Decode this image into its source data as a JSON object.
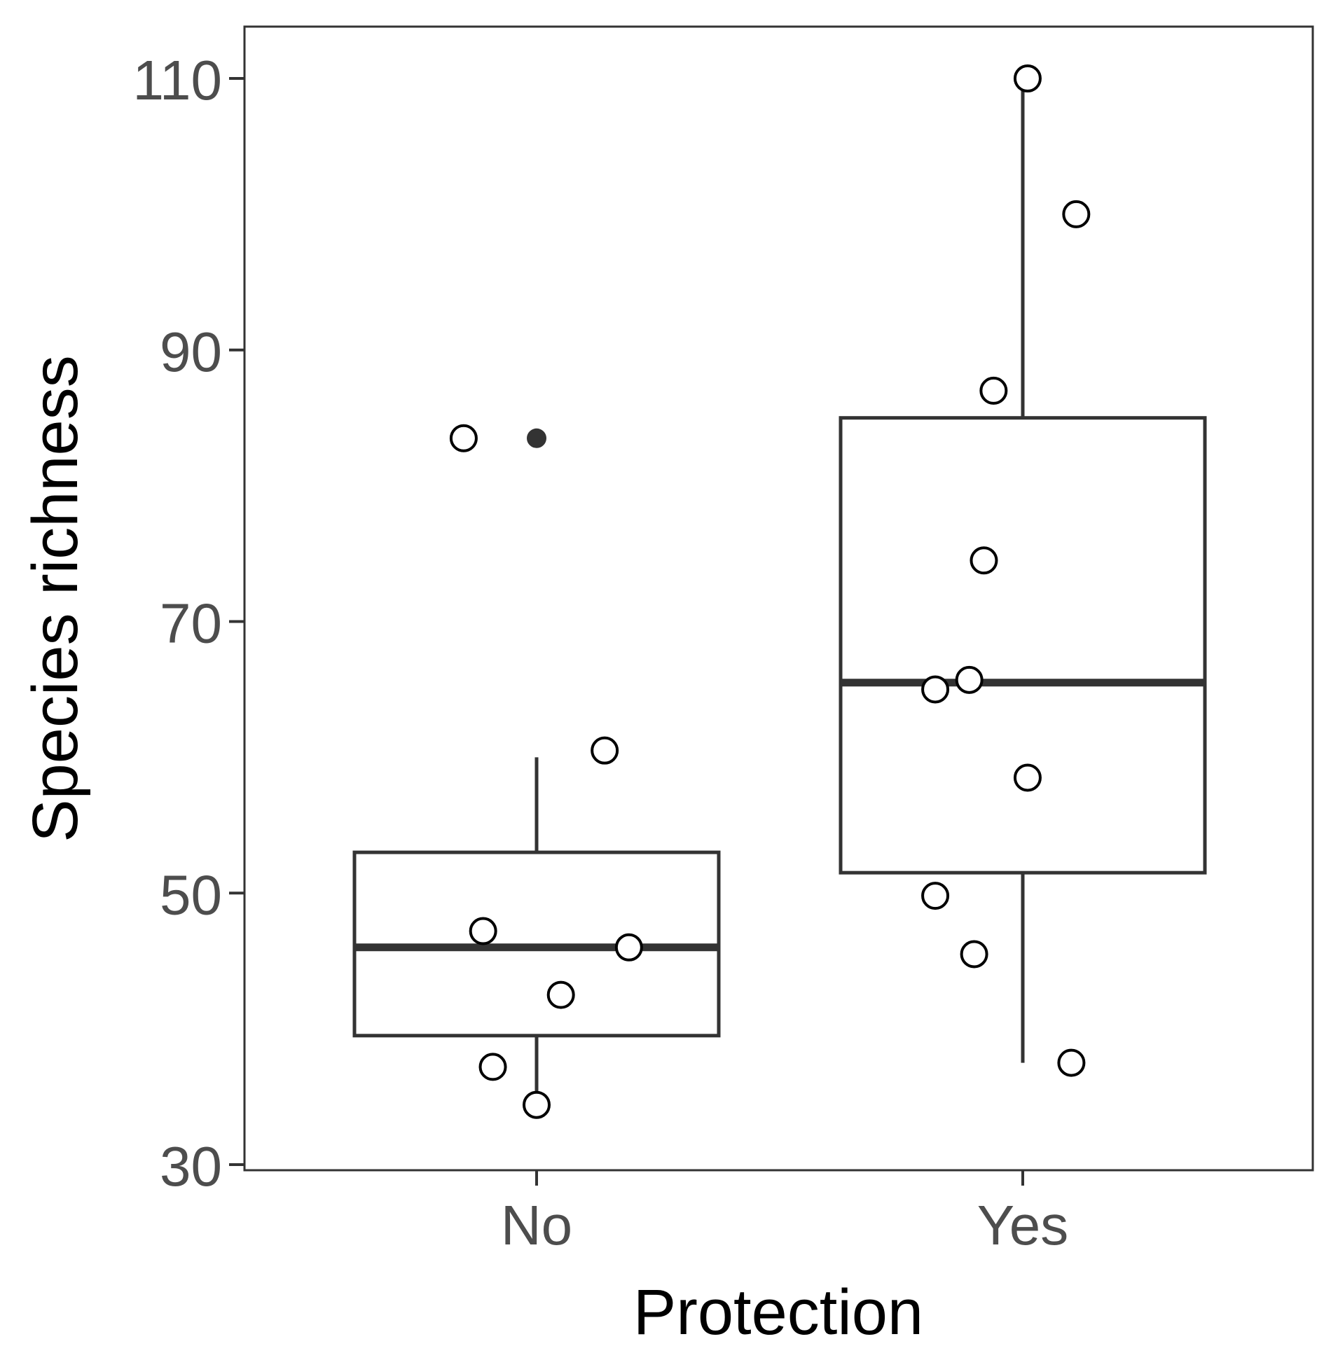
{
  "chart_data": {
    "type": "box",
    "xlabel": "Protection",
    "ylabel": "Species richness",
    "categories": [
      "No",
      "Yes"
    ],
    "ylim": [
      29.5,
      114
    ],
    "yticks": [
      30,
      50,
      70,
      90,
      110
    ],
    "grid": false,
    "boxes": [
      {
        "category": "No",
        "whisker_low": 34,
        "q1": 39.5,
        "median": 46,
        "q3": 53,
        "whisker_high": 60
      },
      {
        "category": "Yes",
        "whisker_low": 37.5,
        "q1": 51.5,
        "median": 65.5,
        "q3": 85,
        "whisker_high": 110
      }
    ],
    "outliers": [
      {
        "category": "No",
        "y": 83.5
      }
    ],
    "points": [
      {
        "category": "No",
        "jitter": -0.15,
        "y": 83.5
      },
      {
        "category": "No",
        "jitter": 0.14,
        "y": 60.5
      },
      {
        "category": "No",
        "jitter": -0.11,
        "y": 47.2
      },
      {
        "category": "No",
        "jitter": 0.19,
        "y": 46.0
      },
      {
        "category": "No",
        "jitter": 0.05,
        "y": 42.5
      },
      {
        "category": "No",
        "jitter": -0.09,
        "y": 37.2
      },
      {
        "category": "No",
        "jitter": 0.0,
        "y": 34.4
      },
      {
        "category": "Yes",
        "jitter": 0.01,
        "y": 110
      },
      {
        "category": "Yes",
        "jitter": 0.11,
        "y": 100
      },
      {
        "category": "Yes",
        "jitter": -0.06,
        "y": 87
      },
      {
        "category": "Yes",
        "jitter": -0.08,
        "y": 74.5
      },
      {
        "category": "Yes",
        "jitter": -0.11,
        "y": 65.7
      },
      {
        "category": "Yes",
        "jitter": -0.18,
        "y": 65.0
      },
      {
        "category": "Yes",
        "jitter": 0.01,
        "y": 58.5
      },
      {
        "category": "Yes",
        "jitter": -0.18,
        "y": 49.8
      },
      {
        "category": "Yes",
        "jitter": -0.1,
        "y": 45.5
      },
      {
        "category": "Yes",
        "jitter": 0.1,
        "y": 37.5
      }
    ],
    "colors": {
      "box_line": "#333333",
      "point_fill": "#ffffff",
      "point_stroke": "#000000",
      "outlier": "#333333",
      "panel_border": "#333333"
    }
  }
}
